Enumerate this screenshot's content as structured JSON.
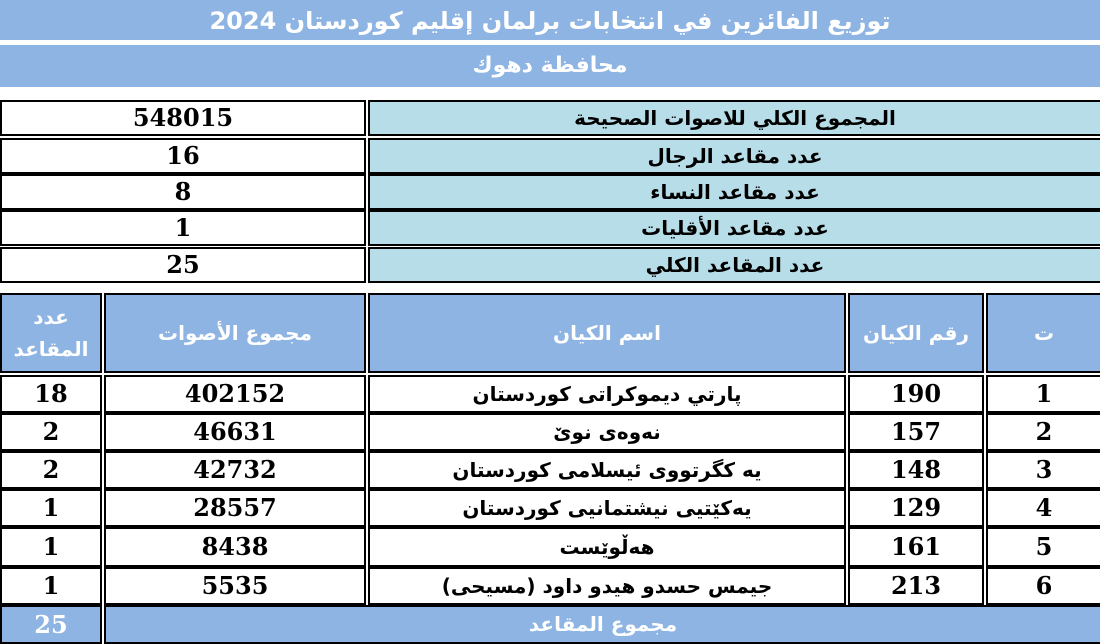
{
  "title": "توزيع الفائزين في انتخابات برلمان إقليم كوردستان 2024",
  "subtitle": "محافظة دهوك",
  "summary": [
    {
      "label": "المجموع الكلي للاصوات الصحيحة",
      "value": "548015"
    },
    {
      "label": "عدد مقاعد الرجال",
      "value": "16"
    },
    {
      "label": "عدد مقاعد النساء",
      "value": "8"
    },
    {
      "label": "عدد مقاعد الأقليات",
      "value": "1"
    },
    {
      "label": "عدد المقاعد الكلي",
      "value": "25"
    }
  ],
  "table": {
    "headers": {
      "seq": "ت",
      "entity_no": "رقم الكيان",
      "entity_name": "اسم الكيان",
      "votes": "مجموع الأصوات",
      "seats_line1": "عدد",
      "seats_line2": "المقاعد"
    },
    "rows": [
      {
        "seq": "1",
        "entity_no": "190",
        "entity_name": "پارتي ديموكراتى كوردستان",
        "votes": "402152",
        "seats": "18"
      },
      {
        "seq": "2",
        "entity_no": "157",
        "entity_name": "نەوەی نوێ",
        "votes": "46631",
        "seats": "2"
      },
      {
        "seq": "3",
        "entity_no": "148",
        "entity_name": "يە کگرتووی ئیسلامی کوردستان",
        "votes": "42732",
        "seats": "2"
      },
      {
        "seq": "4",
        "entity_no": "129",
        "entity_name": "يەکێتیی نیشتمانیی کوردستان",
        "votes": "28557",
        "seats": "1"
      },
      {
        "seq": "5",
        "entity_no": "161",
        "entity_name": "هەڵوێست",
        "votes": "8438",
        "seats": "1"
      },
      {
        "seq": "6",
        "entity_no": "213",
        "entity_name": "جيمس حسدو هيدو داود (مسيحى)",
        "votes": "5535",
        "seats": "1"
      }
    ],
    "footer": {
      "label": "مجموع المقاعد",
      "value": "25"
    }
  }
}
